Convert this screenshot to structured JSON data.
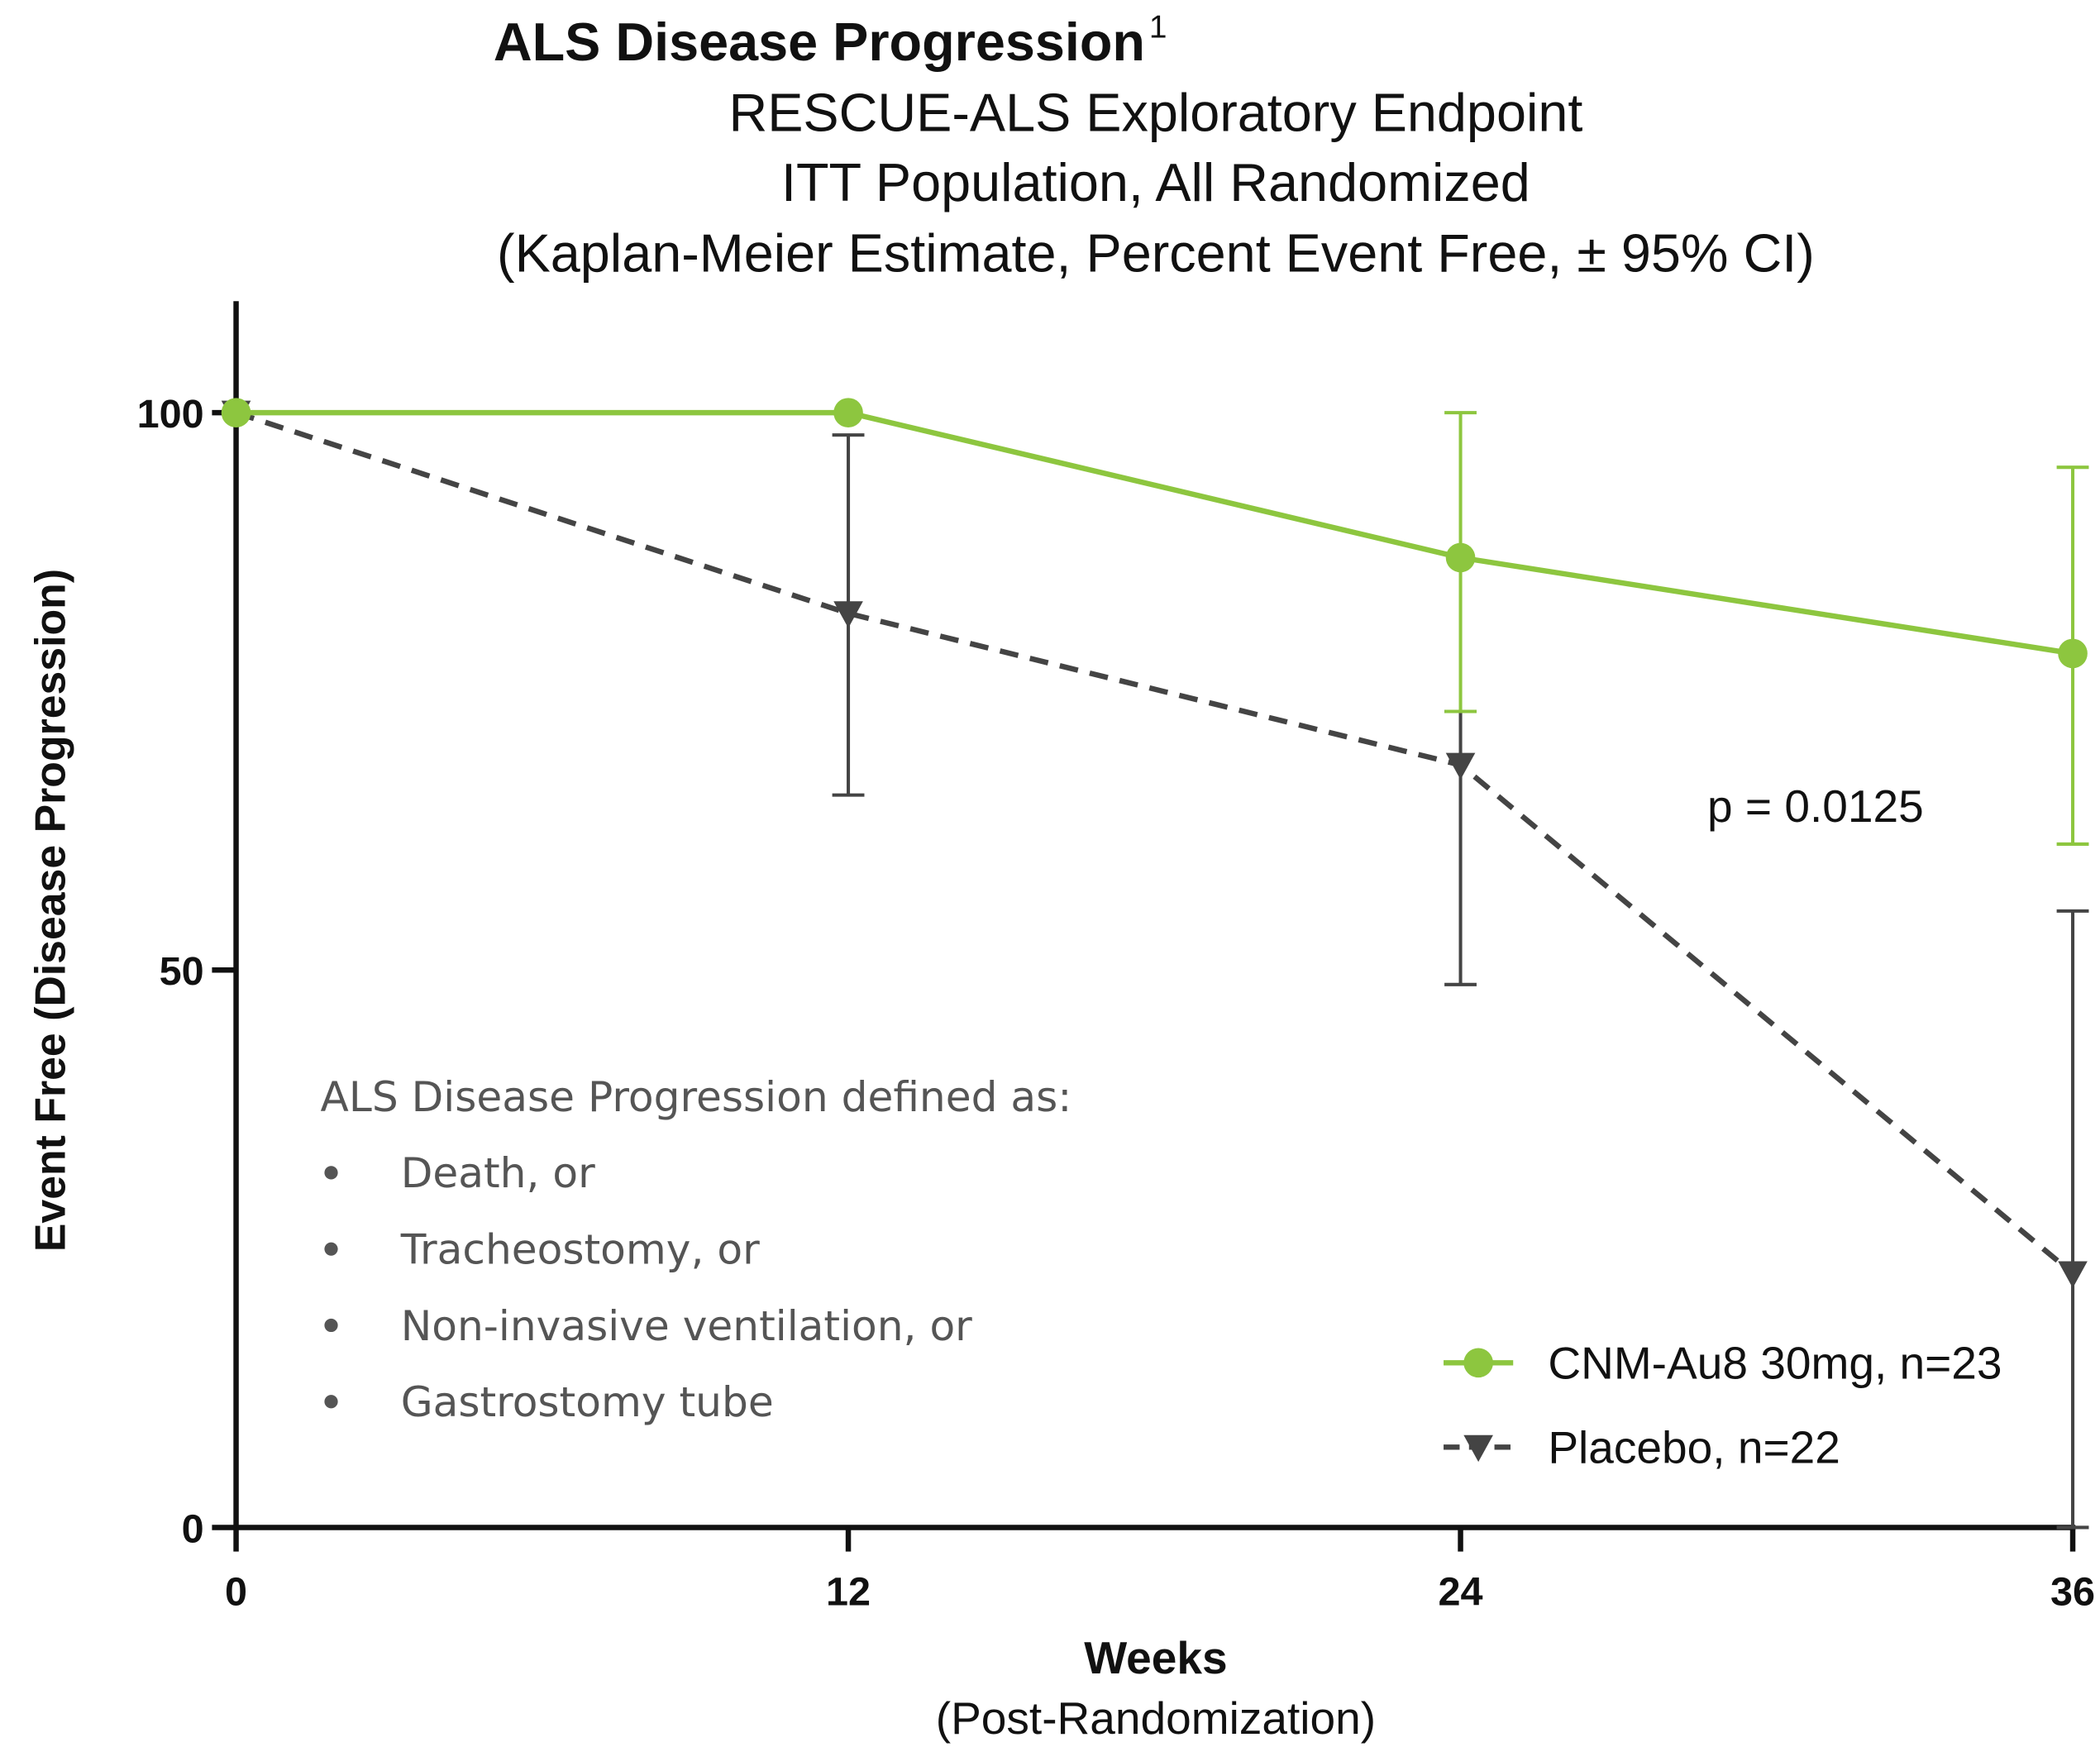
{
  "chart_data": {
    "type": "line",
    "title": "ALS Disease Progression",
    "title_note": "1",
    "subtitle": [
      "RESCUE-ALS Exploratory Endpoint",
      "ITT Population, All Randomized",
      "(Kaplan-Meier Estimate, Percent Event Free, ± 95% CI)"
    ],
    "x_label": "Weeks",
    "x_sublabel": "(Post-Randomization)",
    "y_label": "Event Free (Disease Progression)",
    "x": [
      0,
      12,
      24,
      36
    ],
    "xlim": [
      0,
      36
    ],
    "xticks": [
      0,
      12,
      24,
      36
    ],
    "ylim": [
      0,
      110
    ],
    "yticks": [
      0,
      50,
      100
    ],
    "series": [
      {
        "name": "CNM-Au8 30mg, n=23",
        "color": "#8dc63f",
        "marker": "circle",
        "dashed": false,
        "values": [
          100,
          100,
          87.0,
          78.4
        ],
        "ci_lower": [
          null,
          null,
          73.2,
          61.3
        ],
        "ci_upper": [
          null,
          null,
          100,
          95.1
        ]
      },
      {
        "name": "Placebo, n=22",
        "color": "#444444",
        "marker": "triangle-down",
        "dashed": true,
        "values": [
          100,
          82.0,
          68.4,
          22.8
        ],
        "ci_lower": [
          null,
          65.7,
          48.7,
          0
        ],
        "ci_upper": [
          null,
          98.0,
          73.2,
          55.3
        ]
      }
    ],
    "annotation": "p =  0.0125",
    "definition": {
      "heading": "ALS Disease Progression defined as:",
      "items": [
        "Death, or",
        "Tracheostomy, or",
        "Non-invasive ventilation, or",
        "Gastrostomy tube"
      ]
    },
    "legend": "lower right"
  }
}
